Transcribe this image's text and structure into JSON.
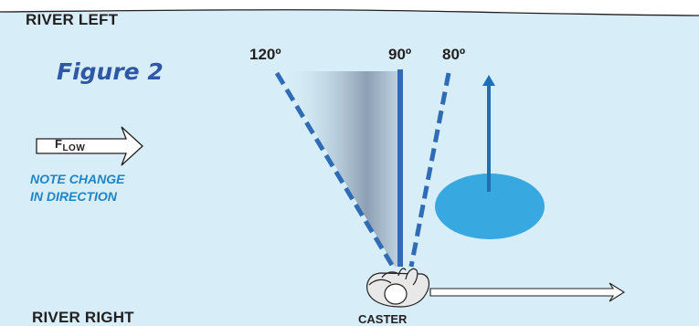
{
  "labels": {
    "river_left": "RIVER LEFT",
    "river_right": "RIVER RIGHT",
    "figure_title": "Figure 2",
    "angle_120": "120º",
    "angle_90": "90º",
    "angle_80": "80º",
    "flow_first": "F",
    "flow_rest": "LOW",
    "note_line1": "NOTE CHANGE",
    "note_line2": "IN DIRECTION",
    "caster": "CASTER"
  },
  "colors": {
    "water": "#d7eef8",
    "shore_line": "#231f20",
    "dashed_line": "#2f6cb5",
    "solid_line": "#2f6cb5",
    "fan_gradient_dark": "#8a9bb0",
    "target_ellipse": "#37a8e0",
    "up_arrow": "#1f6fb7",
    "note_text": "#1f84c6",
    "title_text": "#2e57a6",
    "caster_body": "#e8e8e8"
  },
  "icons": {
    "caster": "caster-figure-icon",
    "flow_arrow": "flow-arrow-icon",
    "drift_arrow": "drift-arrow-icon"
  }
}
